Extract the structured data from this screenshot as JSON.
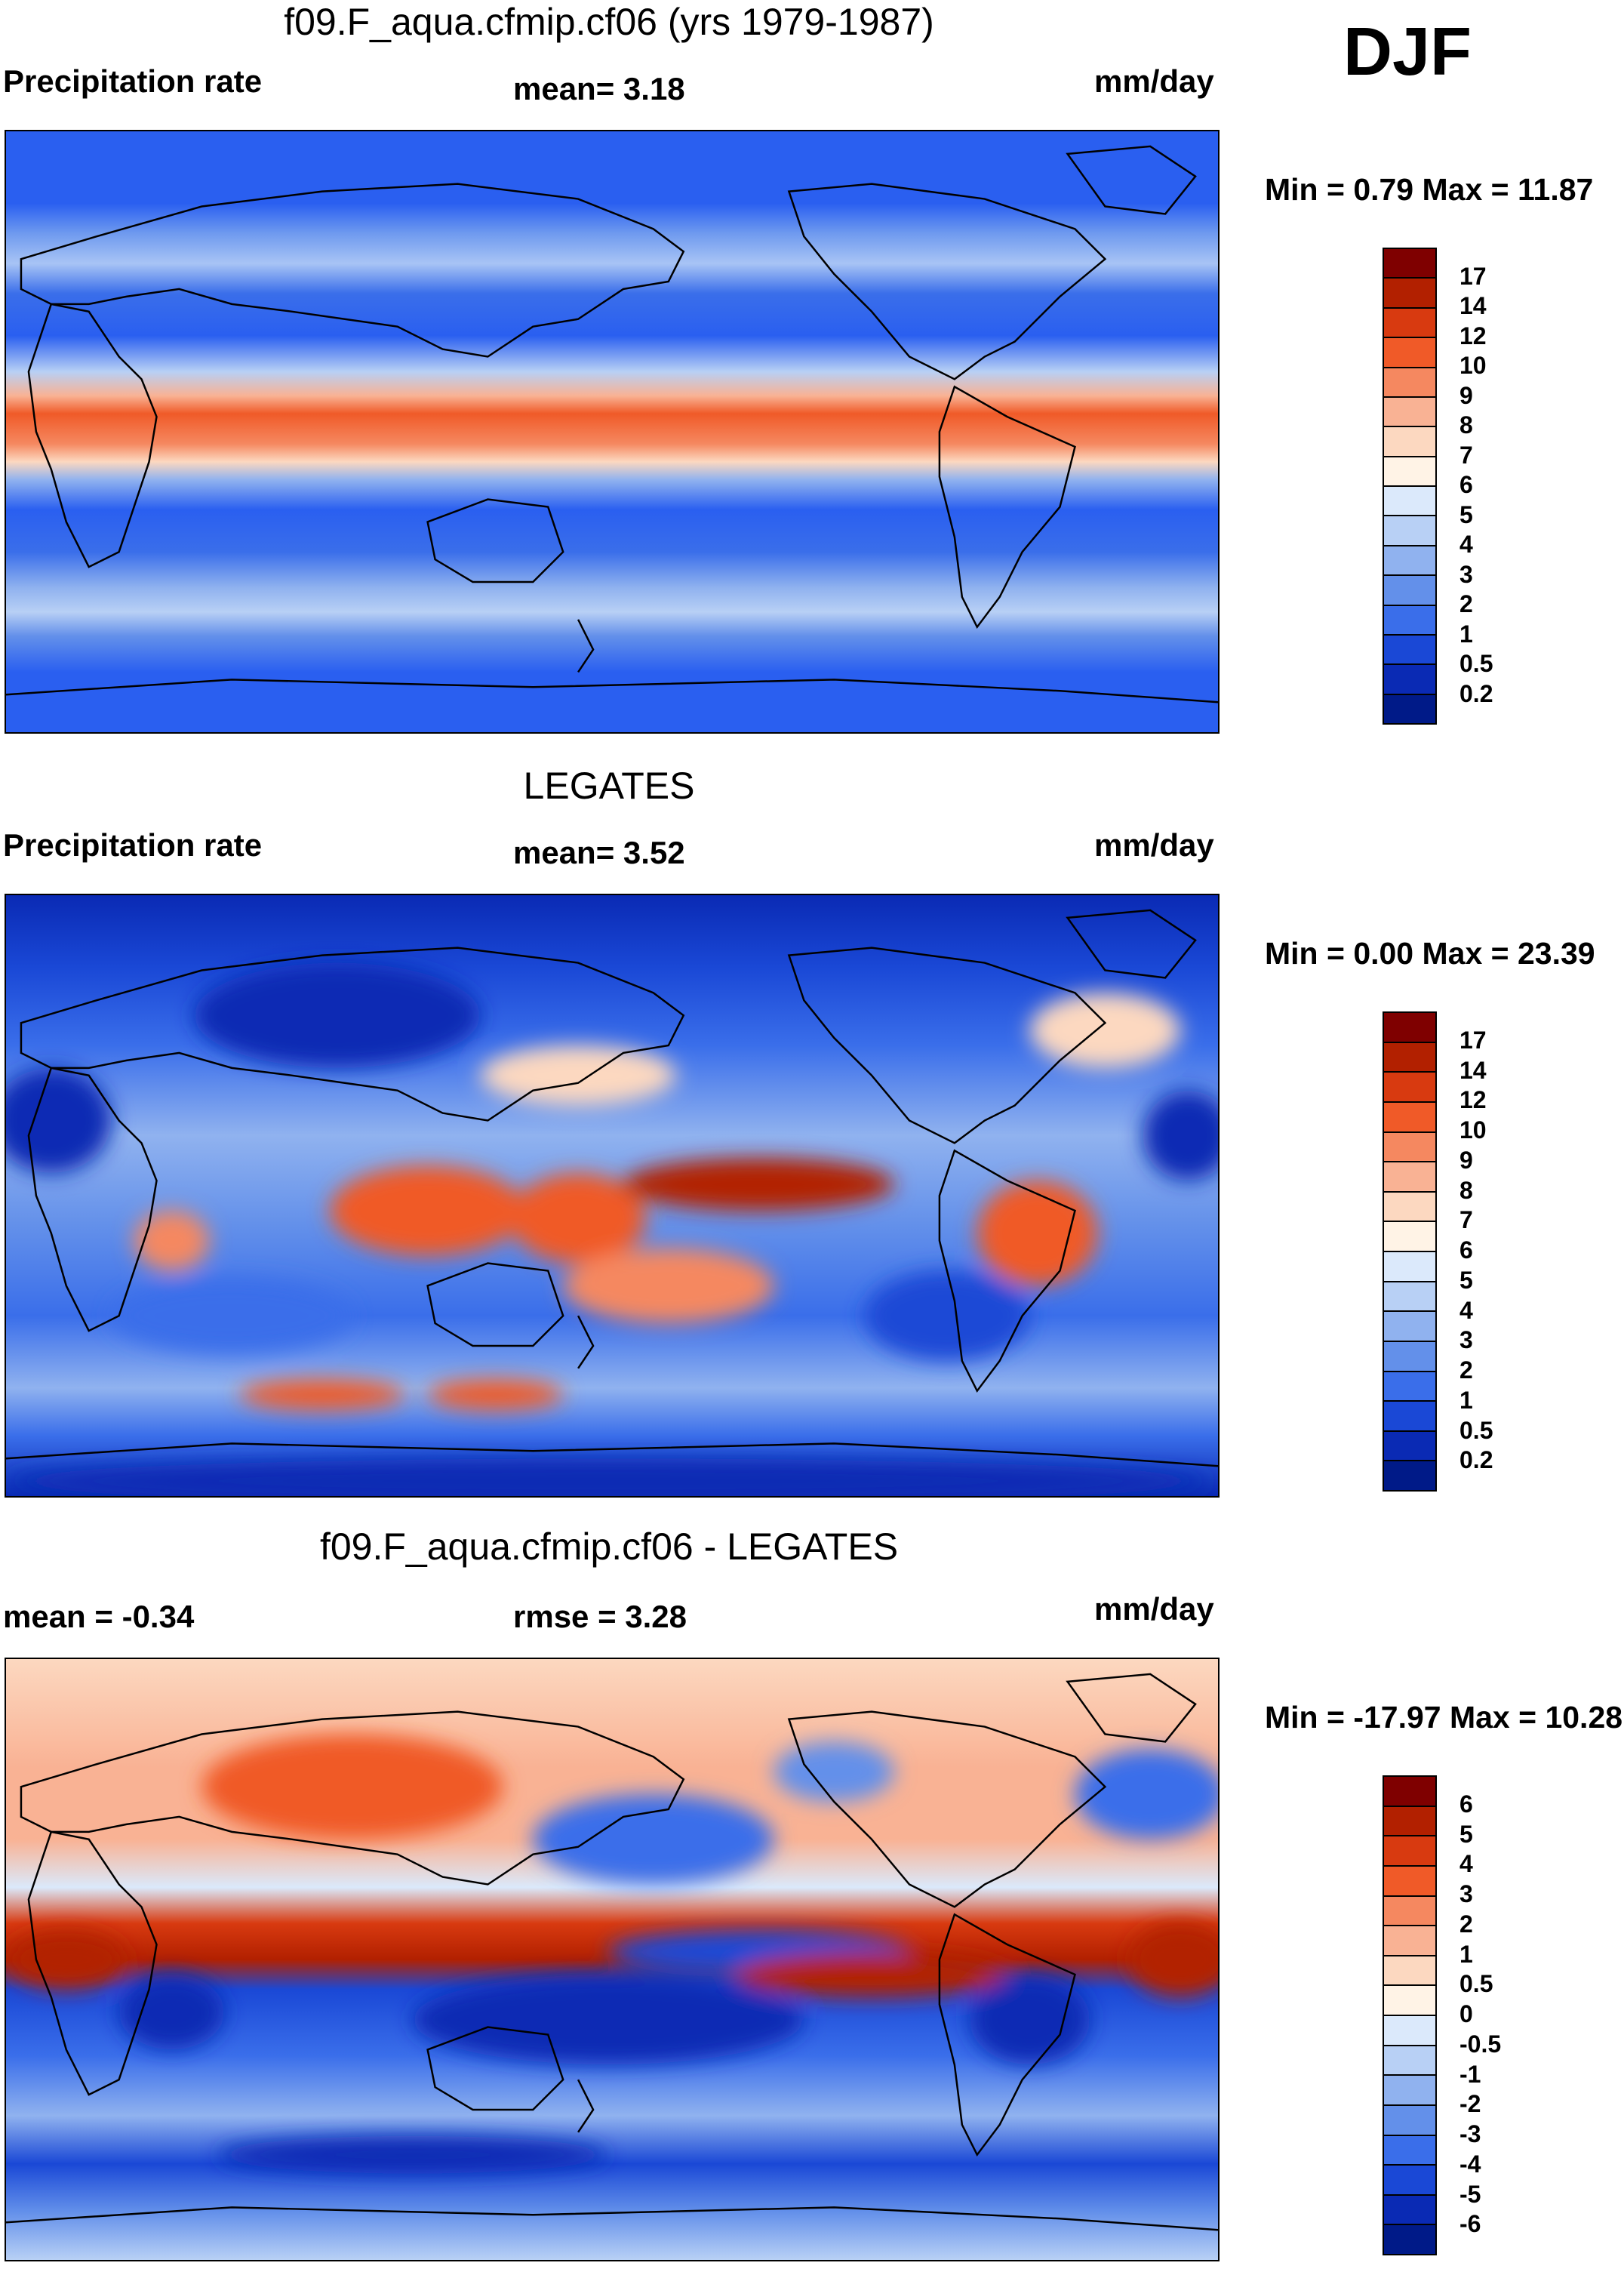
{
  "season": "DJF",
  "panels": [
    {
      "title": "f09.F_aqua.cfmip.cf06 (yrs 1979-1987)",
      "left_label": "Precipitation rate",
      "center_label": "mean=   3.18",
      "units": "mm/day",
      "minmax": "Min =   0.79 Max =  11.87",
      "colorbar_ticks": [
        "17",
        "14",
        "12",
        "10",
        "9",
        "8",
        "7",
        "6",
        "5",
        "4",
        "3",
        "2",
        "1",
        "0.5",
        "0.2"
      ],
      "colorbar_colors": [
        "#7f0000",
        "#b22000",
        "#d83a10",
        "#f05a28",
        "#f58860",
        "#f9b294",
        "#fcd8c0",
        "#fff3e6",
        "#dbe9fb",
        "#b8d0f5",
        "#90b2ef",
        "#6390ea",
        "#3a6eea",
        "#1a48d6",
        "#0a2ab4",
        "#001a88"
      ],
      "map_kind": "model"
    },
    {
      "title": "LEGATES",
      "left_label": "Precipitation rate",
      "center_label": "mean=   3.52",
      "units": "mm/day",
      "minmax": "Min =   0.00 Max =  23.39",
      "colorbar_ticks": [
        "17",
        "14",
        "12",
        "10",
        "9",
        "8",
        "7",
        "6",
        "5",
        "4",
        "3",
        "2",
        "1",
        "0.5",
        "0.2"
      ],
      "colorbar_colors": [
        "#7f0000",
        "#b22000",
        "#d83a10",
        "#f05a28",
        "#f58860",
        "#f9b294",
        "#fcd8c0",
        "#fff3e6",
        "#dbe9fb",
        "#b8d0f5",
        "#90b2ef",
        "#6390ea",
        "#3a6eea",
        "#1a48d6",
        "#0a2ab4",
        "#001a88"
      ],
      "map_kind": "obs"
    },
    {
      "title": "f09.F_aqua.cfmip.cf06 - LEGATES",
      "left_label": "mean =  -0.34",
      "center_label": "rmse =    3.28",
      "units": "mm/day",
      "minmax": "Min = -17.97 Max =  10.28",
      "colorbar_ticks": [
        "6",
        "5",
        "4",
        "3",
        "2",
        "1",
        "0.5",
        "0",
        "-0.5",
        "-1",
        "-2",
        "-3",
        "-4",
        "-5",
        "-6"
      ],
      "colorbar_colors": [
        "#7f0000",
        "#b22000",
        "#d83a10",
        "#f05a28",
        "#f58860",
        "#f9b294",
        "#fcd8c0",
        "#fff3e6",
        "#dbe9fb",
        "#b8d0f5",
        "#90b2ef",
        "#6390ea",
        "#3a6eea",
        "#1a48d6",
        "#0a2ab4",
        "#001a88"
      ],
      "map_kind": "diff"
    }
  ]
}
